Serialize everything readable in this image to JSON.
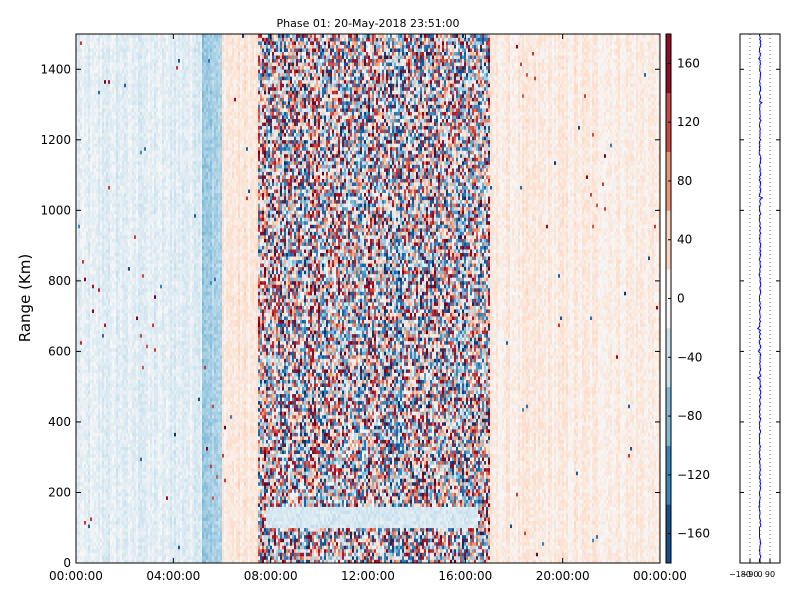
{
  "chart_data": [
    {
      "type": "heatmap",
      "title": "Phase 01: 20-May-2018 23:51:00",
      "xlabel": "",
      "ylabel": "Range (Km)",
      "x_ticks": [
        "00:00:00",
        "04:00:00",
        "08:00:00",
        "12:00:00",
        "16:00:00",
        "20:00:00",
        "00:00:00"
      ],
      "x_tick_hours": [
        0,
        4,
        8,
        12,
        16,
        20,
        24
      ],
      "xlim_hours": [
        0,
        24
      ],
      "ylim": [
        0,
        1500
      ],
      "y_ticks": [
        0,
        200,
        400,
        600,
        800,
        1000,
        1200,
        1400
      ],
      "colorbar": {
        "range": [
          -180,
          180
        ],
        "ticks": [
          160,
          120,
          80,
          40,
          0,
          -40,
          -80,
          -120,
          -160
        ],
        "tick_labels": [
          "160",
          "120",
          "80",
          "40",
          "0",
          "−40",
          "−80",
          "−120",
          "−160"
        ],
        "colormap": "RdBu_r (blue = negative, white = 0, red = positive)"
      },
      "regions": [
        {
          "hours": [
            0,
            5.2
          ],
          "phase_deg": -20,
          "note": "light blue, weak noise"
        },
        {
          "hours": [
            5.2,
            6.0
          ],
          "phase_deg": -60,
          "note": "vertical blue band"
        },
        {
          "hours": [
            6.0,
            7.5
          ],
          "phase_deg": 20,
          "note": "light red"
        },
        {
          "hours": [
            7.5,
            17.0
          ],
          "phase_deg": 0,
          "note": "strong noise, values span -180 to 180"
        },
        {
          "hours": [
            17.0,
            24
          ],
          "phase_deg": 15,
          "note": "light orange, weak noise"
        }
      ],
      "low_range_band": {
        "hours": [
          7.8,
          16.5
        ],
        "range_km": [
          100,
          160
        ],
        "phase_deg": -30
      },
      "grid": false
    },
    {
      "type": "line",
      "title": "",
      "xlabel": "",
      "ylabel": "",
      "x_ticks": [
        "−180",
        "−90",
        "0",
        "90"
      ],
      "x_tick_values": [
        -180,
        -90,
        0,
        90
      ],
      "xlim": [
        -180,
        180
      ],
      "ylim": [
        0,
        1500
      ],
      "series_color": "#0000ff",
      "profile_center_deg": 0,
      "grid": "dotted vertical lines at x ticks"
    }
  ]
}
